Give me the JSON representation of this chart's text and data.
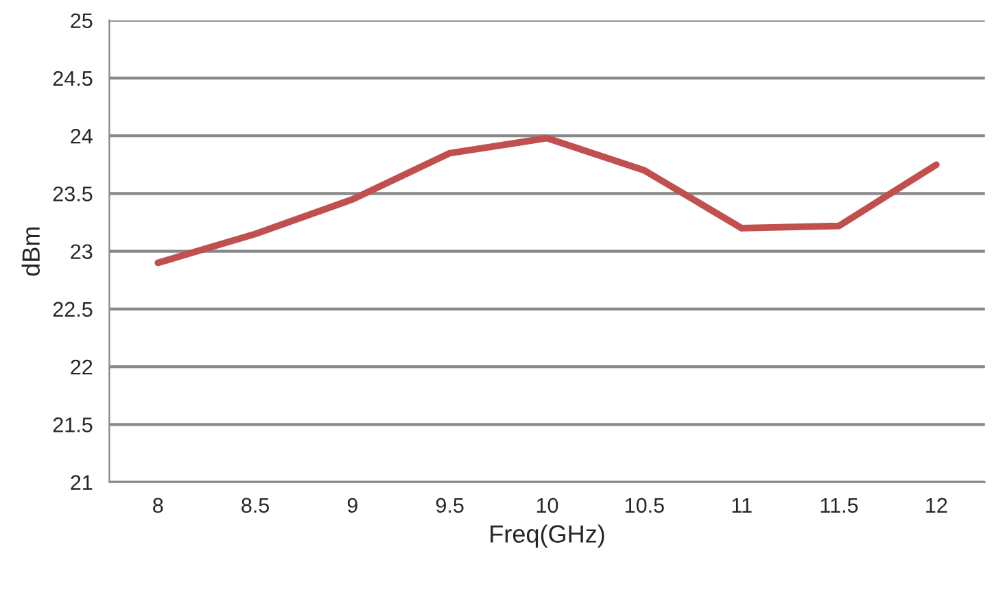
{
  "chart_data": {
    "type": "line",
    "xlabel": "Freq(GHz)",
    "ylabel": "dBm",
    "categories": [
      "8",
      "8.5",
      "9",
      "9.5",
      "10",
      "10.5",
      "11",
      "11.5",
      "12"
    ],
    "series": [
      {
        "color": "#c0504d",
        "values": [
          22.9,
          23.15,
          23.45,
          23.85,
          23.98,
          23.7,
          23.2,
          23.22,
          23.75
        ]
      }
    ],
    "ylim": [
      21,
      25
    ],
    "yticks": [
      21,
      "21.5",
      22,
      "22.5",
      23,
      "23.5",
      24,
      "24.5",
      25
    ],
    "grid": "y",
    "marker": "none",
    "line_style": "solid"
  }
}
